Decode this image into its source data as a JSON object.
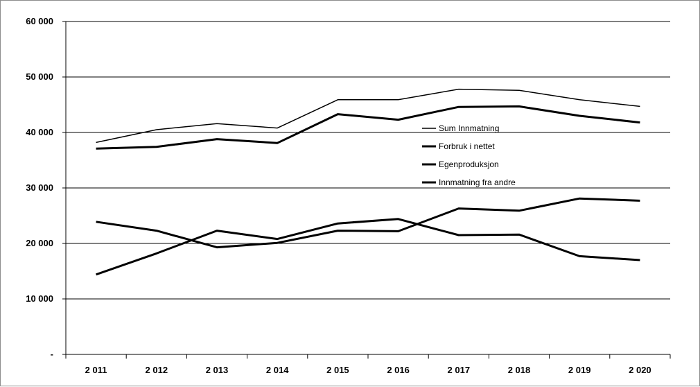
{
  "chart_data": {
    "type": "line",
    "title": "",
    "xlabel": "",
    "ylabel": "",
    "categories": [
      "2 011",
      "2 012",
      "2 013",
      "2 014",
      "2 015",
      "2 016",
      "2 017",
      "2 018",
      "2 019",
      "2 020"
    ],
    "y_tick_values": [
      0,
      10000,
      20000,
      30000,
      40000,
      50000,
      60000
    ],
    "y_tick_labels": [
      "-",
      "10 000",
      "20 000",
      "30 000",
      "40 000",
      "50 000",
      "60 000"
    ],
    "ylim": [
      0,
      60000
    ],
    "grid": true,
    "legend_position": "center-right",
    "series": [
      {
        "name": "Sum Innmatning",
        "color": "#000000",
        "values": [
          38200,
          40500,
          41600,
          40800,
          45900,
          45900,
          47800,
          47600,
          45900,
          44700
        ]
      },
      {
        "name": "Forbruk i nettet",
        "color": "#000000",
        "values": [
          37100,
          37400,
          38800,
          38100,
          43300,
          42300,
          44600,
          44700,
          43000,
          41800
        ]
      },
      {
        "name": "Egenproduksjon",
        "color": "#000000",
        "values": [
          14400,
          18200,
          22300,
          20800,
          23600,
          24400,
          21500,
          21600,
          17700,
          17000
        ]
      },
      {
        "name": "Innmatning fra andre",
        "color": "#000000",
        "values": [
          23900,
          22300,
          19300,
          20100,
          22300,
          22200,
          26300,
          25900,
          28100,
          27700
        ]
      }
    ]
  }
}
